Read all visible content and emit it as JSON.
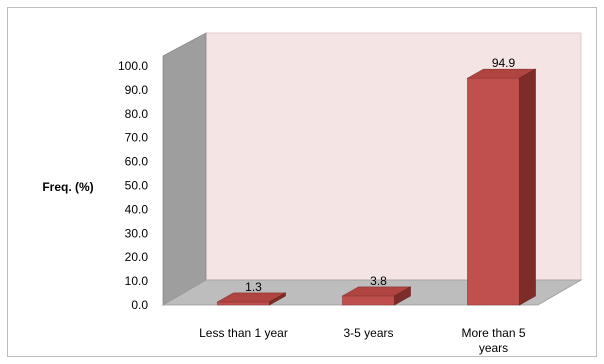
{
  "chart_data": {
    "type": "bar",
    "style": "3d-column",
    "title": "",
    "ylabel": "Freq. (%)",
    "xlabel": "",
    "categories": [
      "Less than 1 year",
      "3-5 years",
      "More than 5 years"
    ],
    "category_lines": [
      [
        "Less than 1 year"
      ],
      [
        "3-5 years"
      ],
      [
        "More than 5",
        "years"
      ]
    ],
    "values": [
      1.3,
      3.8,
      94.9
    ],
    "data_labels": [
      "1.3",
      "3.8",
      "94.9"
    ],
    "ylim": [
      0,
      100
    ],
    "yticks": [
      "0.0",
      "10.0",
      "20.0",
      "30.0",
      "40.0",
      "50.0",
      "60.0",
      "70.0",
      "80.0",
      "90.0",
      "100.0"
    ],
    "grid": false,
    "legend": "none",
    "colors": {
      "bar_front": "#c0504d",
      "bar_top": "#b04441",
      "bar_side": "#7e2c2a",
      "back_wall": "#f5e4e4",
      "side_wall": "#9e9e9e",
      "floor": "#bdbdbd",
      "axis_text": "#000000"
    }
  }
}
